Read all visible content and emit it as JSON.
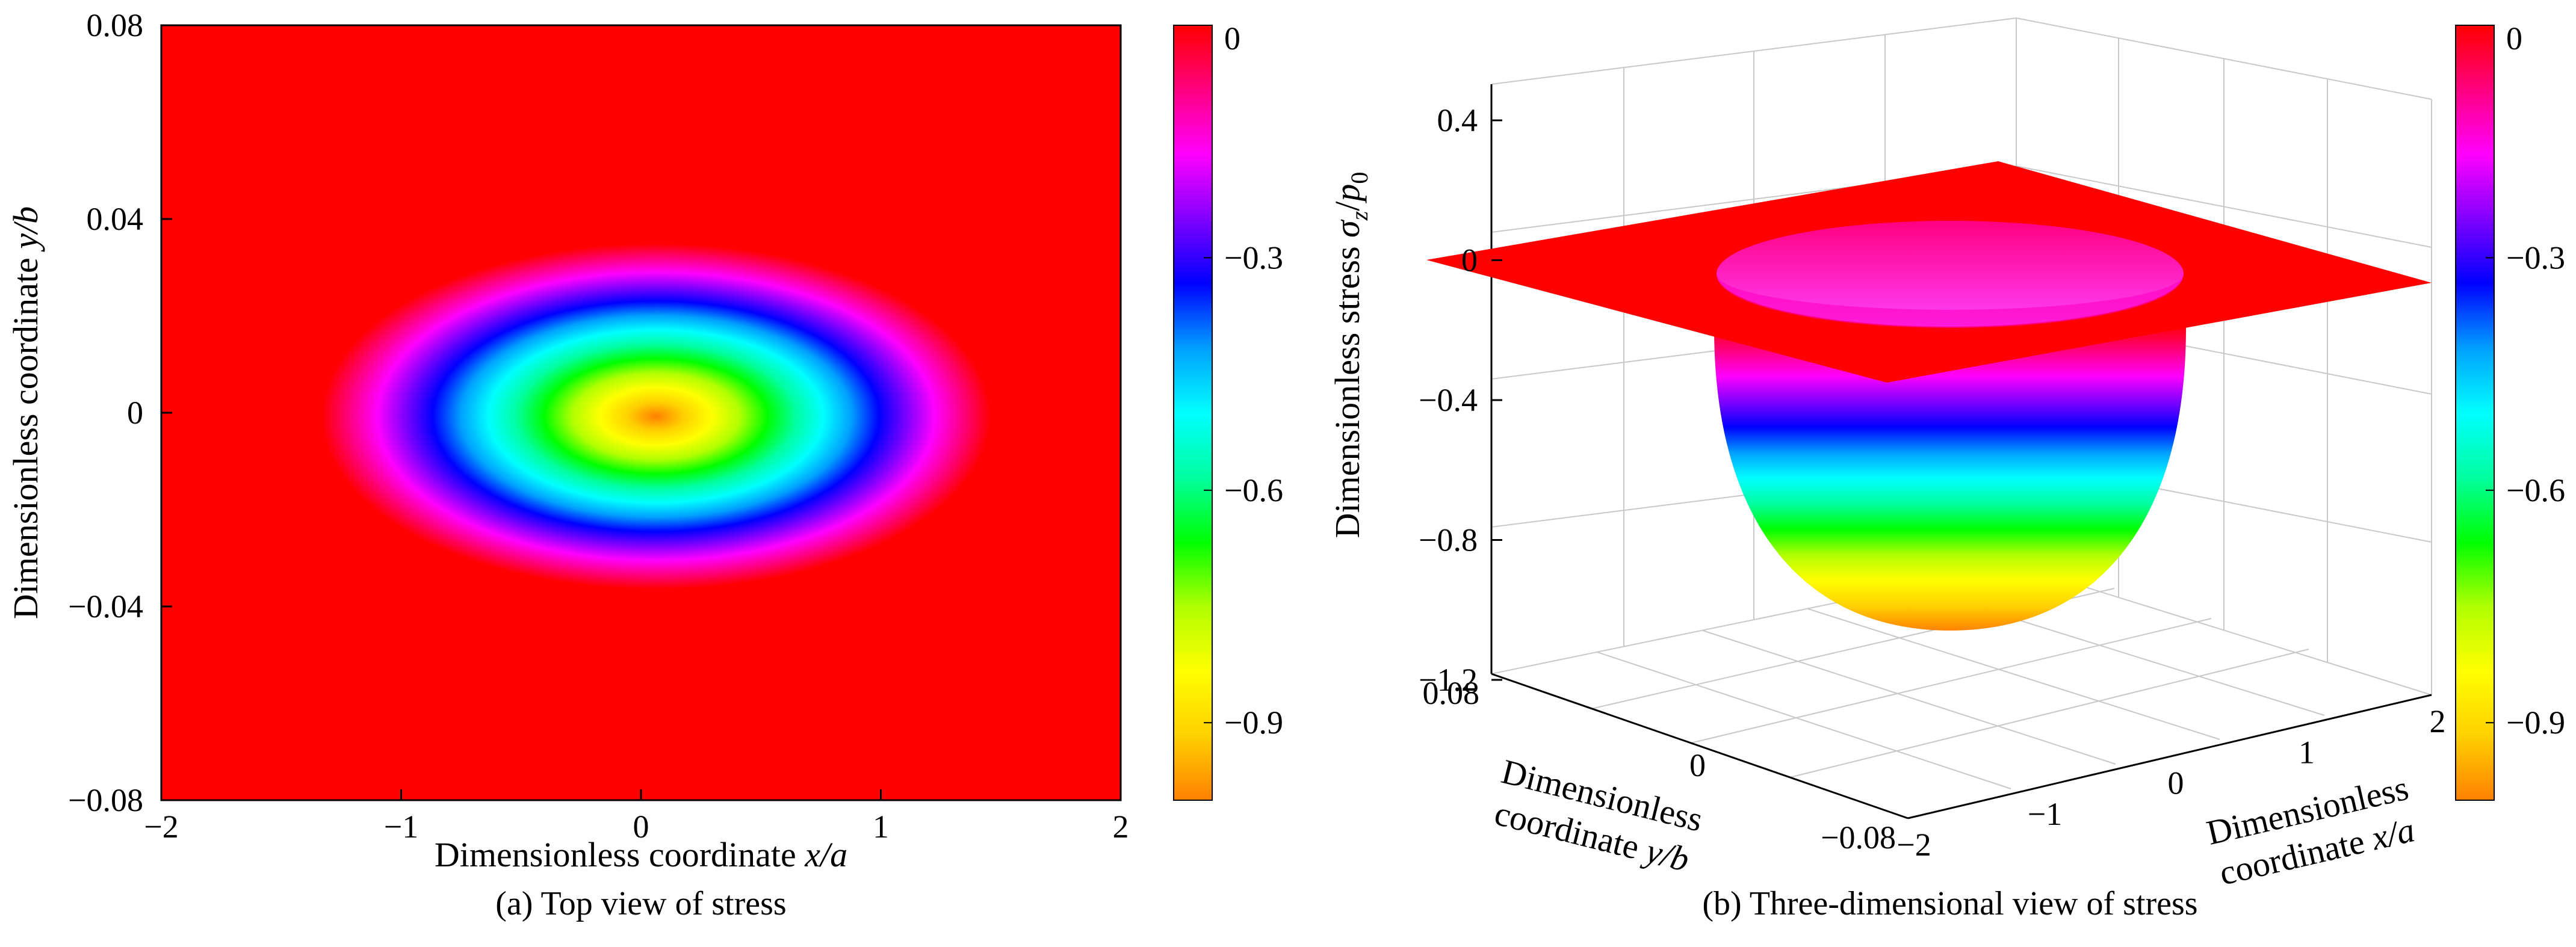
{
  "colors": {
    "background_red": "#ff0000",
    "colormap": [
      "#ff8000",
      "#ffd000",
      "#ffff00",
      "#b0ff00",
      "#00ff00",
      "#00ffa0",
      "#00ffff",
      "#00a0ff",
      "#0000ff",
      "#8000ff",
      "#ff00ff",
      "#ff0080",
      "#ff0000"
    ]
  },
  "chart_data": [
    {
      "type": "heatmap",
      "caption": "(a) Top view of stress",
      "xlabel_prefix": "Dimensionless coordinate ",
      "xlabel_var": "x/a",
      "ylabel_prefix": "Dimensionless coordinate ",
      "ylabel_var": "y/b",
      "xlim": [
        -2,
        2
      ],
      "ylim": [
        -0.08,
        0.08
      ],
      "xticks": [
        "−2",
        "−1",
        "0",
        "1",
        "2"
      ],
      "xtick_values": [
        -2,
        -1,
        0,
        1,
        2
      ],
      "yticks": [
        "−0.08",
        "−0.04",
        "0",
        "0.04",
        "0.08"
      ],
      "ytick_values": [
        -0.08,
        -0.04,
        0,
        0.04,
        0.08
      ],
      "contact_ellipse": {
        "center": [
          0,
          0
        ],
        "semi_x": 1.5,
        "semi_y": 0.0385
      },
      "peak_value": -1.0,
      "outside_value": 0,
      "colorbar": {
        "range": [
          -1,
          0
        ],
        "ticks": [
          "0",
          "−0.3",
          "−0.6",
          "−0.9"
        ],
        "tick_values": [
          0,
          -0.3,
          -0.6,
          -0.9
        ]
      }
    },
    {
      "type": "surface",
      "caption": "(b) Three-dimensional view of stress",
      "zlabel_prefix": "Dimensionless stress  ",
      "zlabel_var": "σ",
      "zlabel_sub": "z",
      "zlabel_div": "/",
      "zlabel_var2": "p",
      "zlabel_sub2": "0",
      "zticks": [
        "0.4",
        "0",
        "−0.4",
        "−0.8",
        "−1.2"
      ],
      "ztick_values": [
        0.4,
        0,
        -0.4,
        -0.8,
        -1.2
      ],
      "zlim": [
        -1.2,
        0.4
      ],
      "yaxis": {
        "line1": "Dimensionless",
        "line2_prefix": "coordinate ",
        "line2_var": "y/b",
        "ticks": [
          "0.08",
          "0",
          "−0.08"
        ],
        "tick_values": [
          0.08,
          0,
          -0.08
        ]
      },
      "xaxis": {
        "line1": "Dimensionless",
        "line2_prefix": "coordinate ",
        "line2_var": "x/a",
        "ticks": [
          "−2",
          "−1",
          "0",
          "1",
          "2"
        ],
        "tick_values": [
          -2,
          -1,
          0,
          1,
          2
        ]
      },
      "surface_min": -1.0,
      "plane_value": 0,
      "colorbar": {
        "range": [
          -1,
          0
        ],
        "ticks": [
          "0",
          "−0.3",
          "−0.6",
          "−0.9"
        ],
        "tick_values": [
          0,
          -0.3,
          -0.6,
          -0.9
        ]
      }
    }
  ]
}
